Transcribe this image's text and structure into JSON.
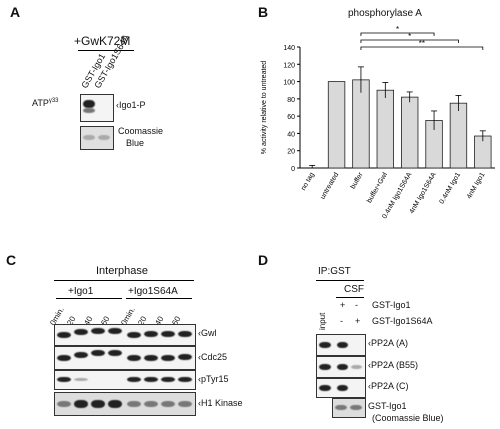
{
  "panels": {
    "a": {
      "letter": "A",
      "header": "+GwK72M",
      "lanes": [
        "GST-Igo1",
        "GST-Igo1S64A"
      ],
      "atp_label": "ATP",
      "atp_sup": "γ33",
      "igo1p_label": "Igo1-P",
      "coomassie": "Coomassie",
      "blue": "Blue"
    },
    "b": {
      "letter": "B"
    },
    "c": {
      "letter": "C",
      "header": "Interphase",
      "groups": [
        "+Igo1",
        "+Igo1S64A"
      ],
      "times": [
        "0min.",
        "20",
        "40",
        "60",
        "0min.",
        "20",
        "40",
        "60"
      ],
      "rows": [
        "Gwl",
        "Cdc25",
        "pTyr15",
        "H1 Kinase"
      ]
    },
    "d": {
      "letter": "D",
      "ip": "IP:GST",
      "csf": "CSF",
      "input": "input",
      "sign_rows": [
        {
          "label": "GST-Igo1",
          "signs": [
            "+",
            "-"
          ]
        },
        {
          "label": "GST-Igo1S64A",
          "signs": [
            "-",
            "+"
          ]
        }
      ],
      "rows": [
        "PP2A (A)",
        "PP2A (B55)",
        "PP2A (C)"
      ],
      "last_row": "GST-Igo1",
      "last_row_sub": "(Coomassie Blue)"
    }
  },
  "chart_data": {
    "type": "bar",
    "title": "phosphorylase A",
    "ylabel": "% activity relative to untreated",
    "ylim": [
      0,
      140
    ],
    "yticks": [
      0,
      20,
      40,
      60,
      80,
      100,
      120,
      140
    ],
    "categories": [
      "no tag",
      "untreated",
      "buffer",
      "buffer+Gwl",
      "0.4nM Igo1S64A",
      "4nM Igo1S64A",
      "0.4nM Igo1",
      "4nM Igo1"
    ],
    "values": [
      0,
      100,
      102,
      90,
      82,
      55,
      75,
      37
    ],
    "errors": [
      3,
      0,
      15,
      9,
      6,
      11,
      9,
      6
    ],
    "significance": [
      {
        "from": "buffer",
        "to": "4nM Igo1S64A",
        "label": "*"
      },
      {
        "from": "buffer",
        "to": "0.4nM Igo1",
        "label": "*"
      },
      {
        "from": "buffer",
        "to": "4nM Igo1",
        "label": "**"
      }
    ],
    "bar_color": "#d9d9d9"
  }
}
